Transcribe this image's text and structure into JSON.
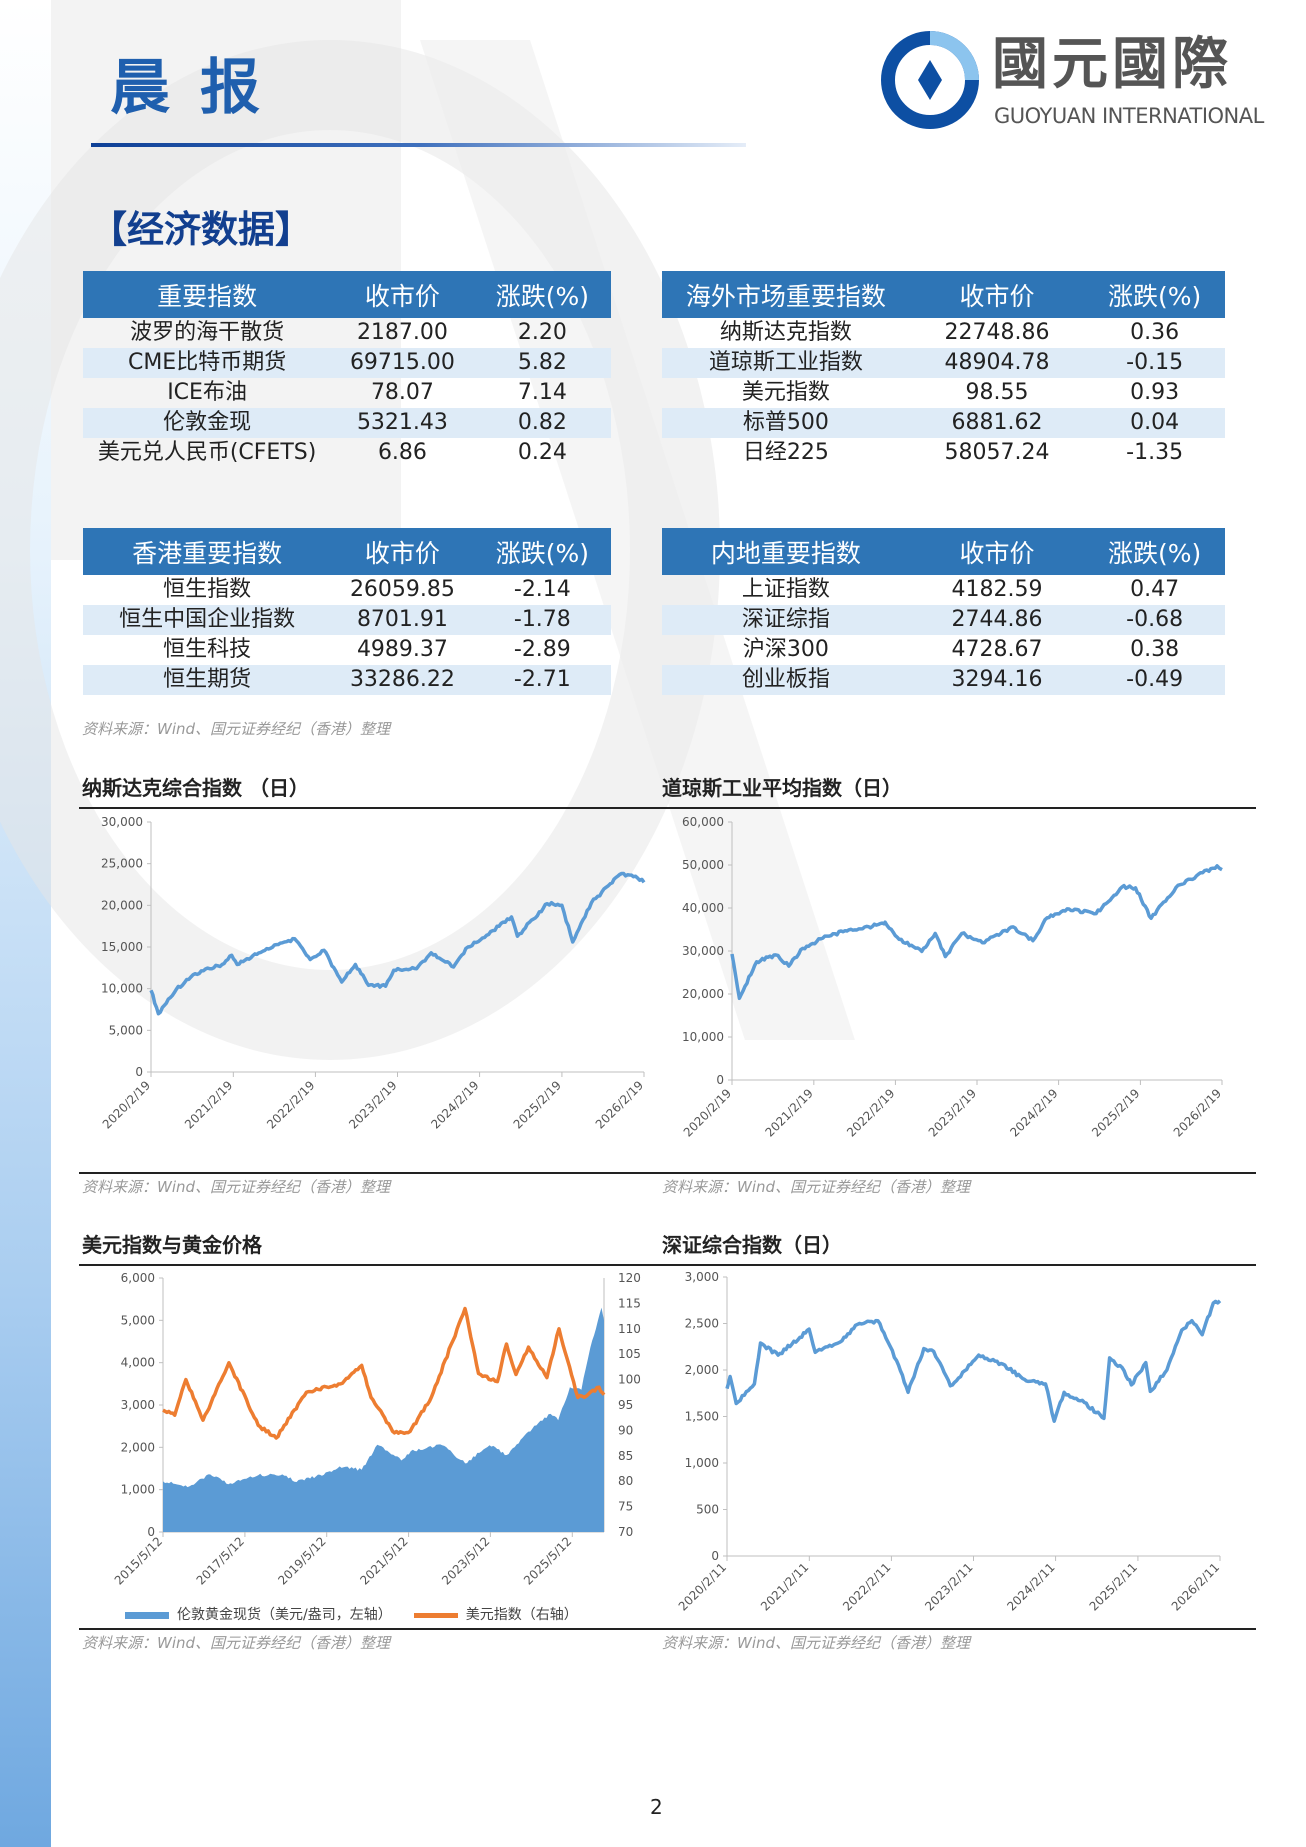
{
  "header": {
    "title": "晨报",
    "logo_cn": "國元國際",
    "logo_en": "GUOYUAN INTERNATIONAL"
  },
  "section_title": "【经济数据】",
  "colors": {
    "header_bg": "#2e75b6",
    "row_alt": "#deebf7",
    "line_blue": "#5b9bd5",
    "line_orange": "#ed7d31",
    "brand": "#1f5fae"
  },
  "tables": [
    {
      "headers": [
        "重要指数",
        "收市价",
        "涨跌(%)"
      ],
      "rows": [
        [
          "波罗的海干散货",
          "2187.00",
          "2.20"
        ],
        [
          "CME比特币期货",
          "69715.00",
          "5.82"
        ],
        [
          "ICE布油",
          "78.07",
          "7.14"
        ],
        [
          "伦敦金现",
          "5321.43",
          "0.82"
        ],
        [
          "美元兑人民币(CFETS)",
          "6.86",
          "0.24"
        ]
      ]
    },
    {
      "headers": [
        "海外市场重要指数",
        "收市价",
        "涨跌(%)"
      ],
      "rows": [
        [
          "纳斯达克指数",
          "22748.86",
          "0.36"
        ],
        [
          "道琼斯工业指数",
          "48904.78",
          "-0.15"
        ],
        [
          "美元指数",
          "98.55",
          "0.93"
        ],
        [
          "标普500",
          "6881.62",
          "0.04"
        ],
        [
          "日经225",
          "58057.24",
          "-1.35"
        ]
      ]
    },
    {
      "headers": [
        "香港重要指数",
        "收市价",
        "涨跌(%)"
      ],
      "rows": [
        [
          "恒生指数",
          "26059.85",
          "-2.14"
        ],
        [
          "恒生中国企业指数",
          "8701.91",
          "-1.78"
        ],
        [
          "恒生科技",
          "4989.37",
          "-2.89"
        ],
        [
          "恒生期货",
          "33286.22",
          "-2.71"
        ]
      ]
    },
    {
      "headers": [
        "内地重要指数",
        "收市价",
        "涨跌(%)"
      ],
      "rows": [
        [
          "上证指数",
          "4182.59",
          "0.47"
        ],
        [
          "深证综指",
          "2744.86",
          "-0.68"
        ],
        [
          "沪深300",
          "4728.67",
          "0.38"
        ],
        [
          "创业板指",
          "3294.16",
          "-0.49"
        ]
      ]
    }
  ],
  "source": "资料来源：Wind、国元证券经纪（香港）整理",
  "page_number": "2",
  "chart_data": [
    {
      "type": "line",
      "title": "纳斯达克综合指数 （日）",
      "ylim": [
        0,
        30000
      ],
      "yticks": [
        "0",
        "5,000",
        "10,000",
        "15,000",
        "20,000",
        "25,000",
        "30,000"
      ],
      "ytick_values": [
        0,
        5000,
        10000,
        15000,
        20000,
        25000,
        30000
      ],
      "xlim": [
        "2020-02-19",
        "2026-02-19"
      ],
      "xticks": [
        "2020/2/19",
        "2021/2/19",
        "2022/2/19",
        "2023/2/19",
        "2024/2/19",
        "2025/2/19",
        "2026/2/19"
      ],
      "series": [
        {
          "x": [
            "2020-02-19",
            "2020-03-23",
            "2020-06-10",
            "2020-09-02",
            "2020-12-31",
            "2021-02-12",
            "2021-03-08",
            "2021-06-30",
            "2021-09-07",
            "2021-11-19",
            "2022-01-27",
            "2022-03-29",
            "2022-06-16",
            "2022-08-16",
            "2022-10-13",
            "2022-12-28",
            "2023-02-02",
            "2023-05-15",
            "2023-07-19",
            "2023-10-26",
            "2023-12-29",
            "2024-03-21",
            "2024-07-10",
            "2024-08-05",
            "2024-12-16",
            "2025-02-19",
            "2025-04-08",
            "2025-06-30",
            "2025-09-22",
            "2025-11-03",
            "2026-01-12",
            "2026-02-19"
          ],
          "y": [
            9800,
            7000,
            9900,
            11800,
            12900,
            14000,
            12900,
            14500,
            15300,
            16000,
            13500,
            14600,
            10800,
            12900,
            10400,
            10300,
            12200,
            12400,
            14300,
            12600,
            15000,
            16400,
            18600,
            16300,
            20200,
            20000,
            15600,
            20300,
            22600,
            23700,
            23500,
            22750
          ]
        }
      ]
    },
    {
      "type": "line",
      "title": "道琼斯工业平均指数（日）",
      "ylim": [
        0,
        60000
      ],
      "yticks": [
        "0",
        "10,000",
        "20,000",
        "30,000",
        "40,000",
        "50,000",
        "60,000"
      ],
      "ytick_values": [
        0,
        10000,
        20000,
        30000,
        40000,
        50000,
        60000
      ],
      "xlim": [
        "2020-02-19",
        "2026-02-19"
      ],
      "xticks": [
        "2020/2/19",
        "2021/2/19",
        "2022/2/19",
        "2023/2/19",
        "2024/2/19",
        "2025/2/19",
        "2026/2/19"
      ],
      "series": [
        {
          "x": [
            "2020-02-19",
            "2020-03-23",
            "2020-06-08",
            "2020-09-02",
            "2020-10-30",
            "2020-12-31",
            "2021-03-31",
            "2021-06-30",
            "2021-12-31",
            "2022-01-04",
            "2022-03-08",
            "2022-06-17",
            "2022-08-16",
            "2022-09-30",
            "2022-12-13",
            "2023-03-15",
            "2023-07-31",
            "2023-10-27",
            "2023-12-29",
            "2024-03-28",
            "2024-08-05",
            "2024-11-29",
            "2025-01-28",
            "2025-04-08",
            "2025-07-28",
            "2025-10-28",
            "2026-01-28",
            "2026-02-19"
          ],
          "y": [
            29300,
            19000,
            27500,
            29100,
            26500,
            30600,
            33000,
            34500,
            36300,
            36700,
            32700,
            29900,
            34100,
            28700,
            34100,
            31900,
            35600,
            32400,
            37700,
            39800,
            38700,
            44900,
            44700,
            37600,
            44800,
            47500,
            49800,
            48900
          ]
        }
      ]
    },
    {
      "type": "area+line",
      "title": "美元指数与黄金价格",
      "ylim": [
        0,
        6000
      ],
      "yticks": [
        "0",
        "1,000",
        "2,000",
        "3,000",
        "4,000",
        "5,000",
        "6,000"
      ],
      "ytick_values": [
        0,
        1000,
        2000,
        3000,
        4000,
        5000,
        6000
      ],
      "y2lim": [
        70,
        120
      ],
      "y2ticks": [
        "70",
        "75",
        "80",
        "85",
        "90",
        "95",
        "100",
        "105",
        "110",
        "115",
        "120"
      ],
      "y2tick_values": [
        70,
        75,
        80,
        85,
        90,
        95,
        100,
        105,
        110,
        115,
        120
      ],
      "xlim": [
        "2015-05-12",
        "2026-02-19"
      ],
      "xticks": [
        "2015/5/12",
        "2017/5/12",
        "2019/5/12",
        "2021/5/12",
        "2023/5/12",
        "2025/5/12"
      ],
      "series": [
        {
          "name": "伦敦黄金现货（美元/盎司，左轴）",
          "type": "area",
          "axis": "left",
          "x": [
            "2015-05-12",
            "2015-12-17",
            "2016-07-06",
            "2016-12-15",
            "2017-09-08",
            "2018-04-11",
            "2018-08-16",
            "2019-06-25",
            "2019-09-04",
            "2020-03-19",
            "2020-08-06",
            "2021-03-08",
            "2021-06-01",
            "2022-03-08",
            "2022-09-28",
            "2023-05-04",
            "2023-10-05",
            "2024-01-02",
            "2024-05-20",
            "2024-10-30",
            "2025-01-06",
            "2025-04-21",
            "2025-08-01",
            "2025-10-20",
            "2026-01-28",
            "2026-02-19"
          ],
          "y": [
            1200,
            1060,
            1360,
            1130,
            1340,
            1360,
            1180,
            1420,
            1550,
            1470,
            2060,
            1690,
            1910,
            2050,
            1620,
            2050,
            1820,
            2070,
            2440,
            2790,
            2640,
            3420,
            3360,
            4350,
            5300,
            5000
          ]
        },
        {
          "name": "美元指数（右轴）",
          "type": "line",
          "axis": "right",
          "x": [
            "2015-05-12",
            "2015-08-24",
            "2015-12-02",
            "2016-05-03",
            "2016-12-20",
            "2017-09-08",
            "2018-02-15",
            "2018-11-12",
            "2019-09-30",
            "2020-03-19",
            "2020-06-10",
            "2021-01-06",
            "2021-05-25",
            "2021-12-01",
            "2022-09-27",
            "2023-01-26",
            "2023-07-14",
            "2023-10-03",
            "2023-12-27",
            "2024-04-16",
            "2024-09-27",
            "2025-01-13",
            "2025-06-30",
            "2025-09-17",
            "2026-01-05",
            "2026-02-19"
          ],
          "y": [
            94,
            93,
            100,
            92,
            103.3,
            91,
            88.5,
            97.5,
            99.3,
            102.8,
            96.5,
            89.5,
            89.8,
            96.5,
            114,
            101.2,
            99.6,
            107,
            101,
            106.4,
            100.4,
            110,
            96.5,
            96.8,
            98.5,
            97
          ]
        }
      ]
    },
    {
      "type": "line",
      "title": "深证综合指数（日）",
      "ylim": [
        0,
        3000
      ],
      "yticks": [
        "0",
        "500",
        "1,000",
        "1,500",
        "2,000",
        "2,500",
        "3,000"
      ],
      "ytick_values": [
        0,
        500,
        1000,
        1500,
        2000,
        2500,
        3000
      ],
      "xlim": [
        "2020-02-11",
        "2026-02-11"
      ],
      "xticks": [
        "2020/2/11",
        "2021/2/11",
        "2022/2/11",
        "2023/2/11",
        "2024/2/11",
        "2025/2/11",
        "2026/2/11"
      ],
      "series": [
        {
          "x": [
            "2020-02-11",
            "2020-02-25",
            "2020-03-23",
            "2020-06-12",
            "2020-07-09",
            "2020-09-25",
            "2020-12-31",
            "2021-02-10",
            "2021-03-09",
            "2021-06-28",
            "2021-09-13",
            "2021-12-13",
            "2022-01-27",
            "2022-03-15",
            "2022-04-26",
            "2022-07-05",
            "2022-08-18",
            "2022-10-31",
            "2023-01-30",
            "2023-03-06",
            "2023-06-14",
            "2023-09-25",
            "2023-12-28",
            "2024-02-05",
            "2024-03-20",
            "2024-06-18",
            "2024-09-13",
            "2024-10-08",
            "2024-12-12",
            "2025-01-13",
            "2025-03-18",
            "2025-04-07",
            "2025-06-20",
            "2025-08-25",
            "2025-10-09",
            "2025-11-24",
            "2026-01-12",
            "2026-02-11"
          ],
          "y": [
            1800,
            1930,
            1640,
            1850,
            2290,
            2160,
            2350,
            2440,
            2190,
            2300,
            2490,
            2530,
            2300,
            2050,
            1760,
            2230,
            2200,
            1830,
            2060,
            2160,
            2070,
            1900,
            1850,
            1450,
            1760,
            1650,
            1480,
            2130,
            1990,
            1840,
            2080,
            1770,
            2000,
            2430,
            2530,
            2380,
            2720,
            2744
          ]
        }
      ]
    }
  ]
}
